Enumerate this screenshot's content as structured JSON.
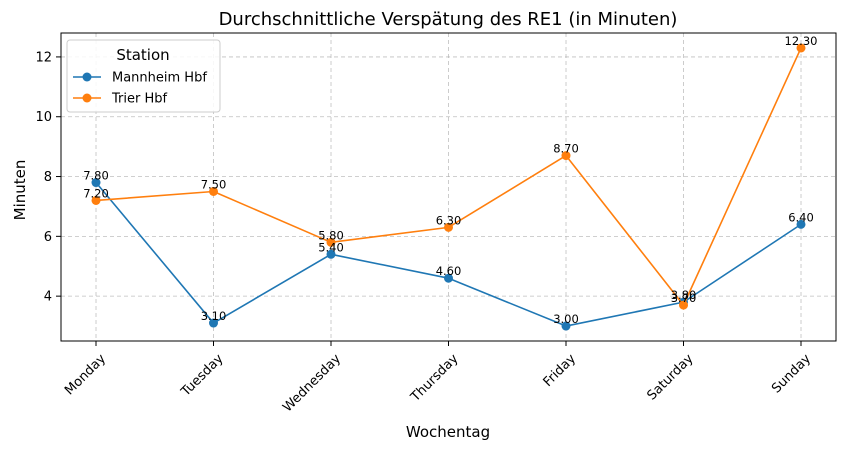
{
  "chart_data": {
    "type": "line",
    "title": "Durchschnittliche Verspätung des RE1 (in Minuten)",
    "xlabel": "Wochentag",
    "ylabel": "Minuten",
    "categories": [
      "Monday",
      "Tuesday",
      "Wednesday",
      "Thursday",
      "Friday",
      "Saturday",
      "Sunday"
    ],
    "yticks": [
      "4",
      "6",
      "8",
      "10",
      "12"
    ],
    "ylim": [
      2.5,
      12.8
    ],
    "grid": true,
    "legend": {
      "title": "Station",
      "placement": "top-left"
    },
    "series": [
      {
        "name": "Mannheim Hbf",
        "color": "#1f77b4",
        "values": [
          7.8,
          3.1,
          5.4,
          4.6,
          3.0,
          3.8,
          6.4
        ],
        "labels": [
          "7.80",
          "3.10",
          "5.40",
          "4.60",
          "3.00",
          "3.80",
          "6.40"
        ]
      },
      {
        "name": "Trier Hbf",
        "color": "#ff7f0e",
        "values": [
          7.2,
          7.5,
          5.8,
          6.3,
          8.7,
          3.7,
          12.3
        ],
        "labels": [
          "7.20",
          "7.50",
          "5.80",
          "6.30",
          "8.70",
          "3.70",
          "12.30"
        ]
      }
    ]
  }
}
